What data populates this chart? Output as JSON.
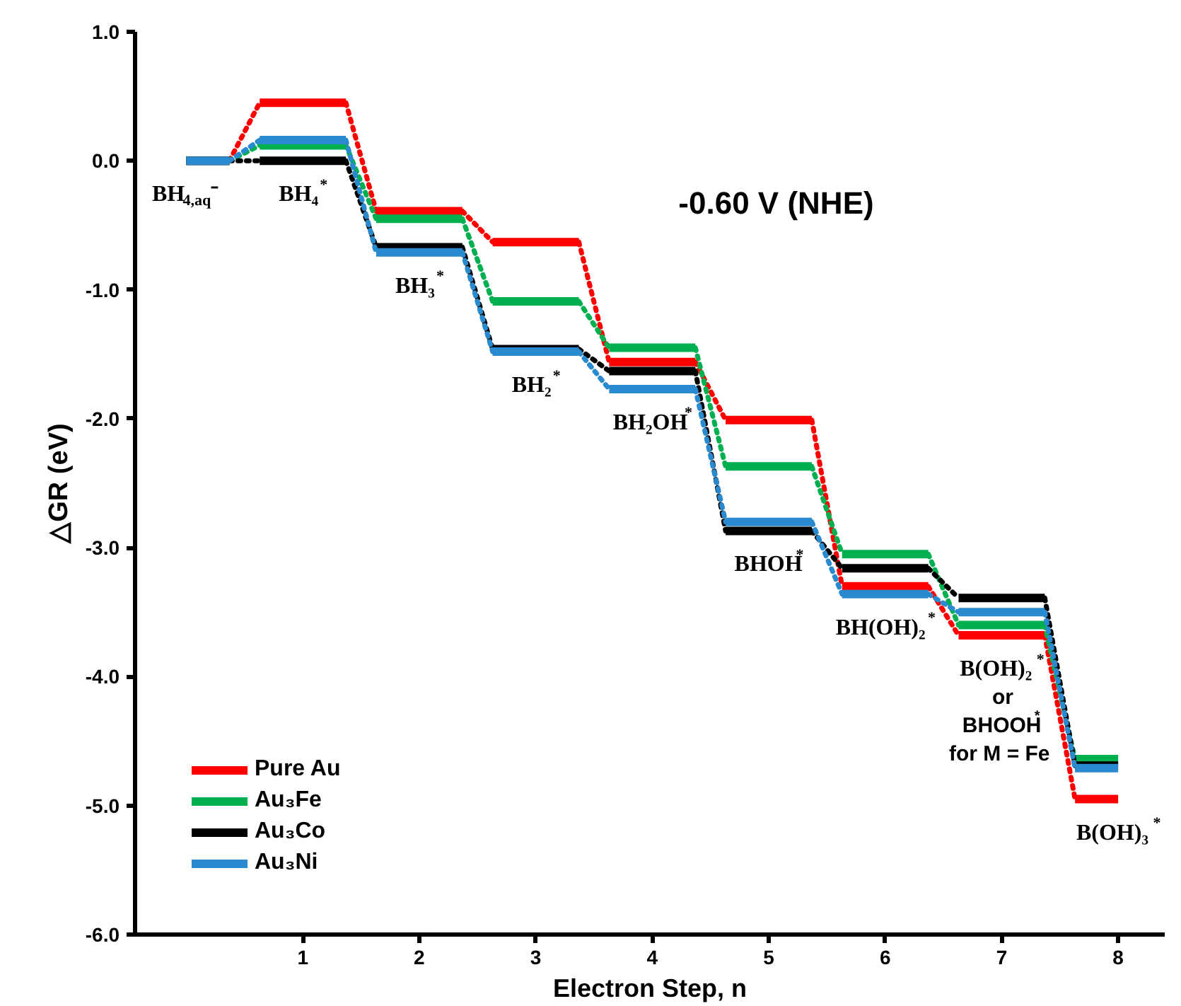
{
  "chart_data": {
    "type": "step",
    "xlabel": "Electron Step, n",
    "ylabel": "△GR (eV)",
    "x": [
      0,
      1,
      2,
      3,
      4,
      5,
      6,
      7,
      8
    ],
    "series": [
      {
        "name": "Pure Au",
        "color": "#ff0000",
        "values": [
          0,
          0.45,
          -0.39,
          -0.63,
          -1.56,
          -2.01,
          -3.3,
          -3.68,
          -4.95
        ]
      },
      {
        "name": "Au₃Fe",
        "color": "#00b050",
        "values": [
          0,
          0.12,
          -0.45,
          -1.09,
          -1.45,
          -2.37,
          -3.05,
          -3.6,
          -4.64
        ]
      },
      {
        "name": "Au₃Co",
        "color": "#000000",
        "values": [
          0,
          0.0,
          -0.67,
          -1.46,
          -1.63,
          -2.87,
          -3.16,
          -3.39,
          -4.69
        ]
      },
      {
        "name": "Au₃Ni",
        "color": "#2a8ad0",
        "values": [
          0,
          0.16,
          -0.71,
          -1.48,
          -1.77,
          -2.8,
          -3.36,
          -3.5,
          -4.71
        ]
      }
    ],
    "xlim": [
      -0.44,
      8.4
    ],
    "ylim": [
      -6,
      1
    ],
    "xticks": [
      1,
      2,
      3,
      4,
      5,
      6,
      7,
      8
    ],
    "yticks": [
      {
        "value": -6,
        "label": "-6.0"
      },
      {
        "value": -5,
        "label": "-5.0"
      },
      {
        "value": -4,
        "label": "-4.0"
      },
      {
        "value": -3,
        "label": "-3.0"
      },
      {
        "value": -2,
        "label": "-2.0"
      },
      {
        "value": -1,
        "label": "-1.0"
      },
      {
        "value": 0,
        "label": "0.0"
      },
      {
        "value": 1,
        "label": "1.0"
      }
    ],
    "grid": false,
    "legend": "bottom left",
    "line_style": "dotted",
    "annotations": [
      "-0.60 V (NHE)",
      {
        "text": "BH$_{4,aq}$⁻",
        "x": 0,
        "y": 0
      },
      {
        "text": "BH₄$^{*}$",
        "x": 1,
        "y": 0.0
      },
      {
        "text": "BH₃$^{*}$",
        "x": 2,
        "y": -0.71
      },
      {
        "text": "BH₂$^{*}$",
        "x": 3,
        "y": -1.48
      },
      {
        "text": "BH₂OH$^{*}$",
        "x": 4,
        "y": -1.77
      },
      {
        "text": "BHOH$^{*}$",
        "x": 5,
        "y": -2.87
      },
      {
        "text": "BH(OH)₂$^{*}$",
        "x": 6,
        "y": -3.36
      },
      {
        "text": "B(OH)₂$^{*}$",
        "x": 7,
        "y": -3.68
      },
      "or",
      "BHOOH$^{*}$",
      "for M = Fe",
      {
        "text": "B(OH)₃$^{*}$",
        "x": 8,
        "y": -4.95
      }
    ]
  }
}
